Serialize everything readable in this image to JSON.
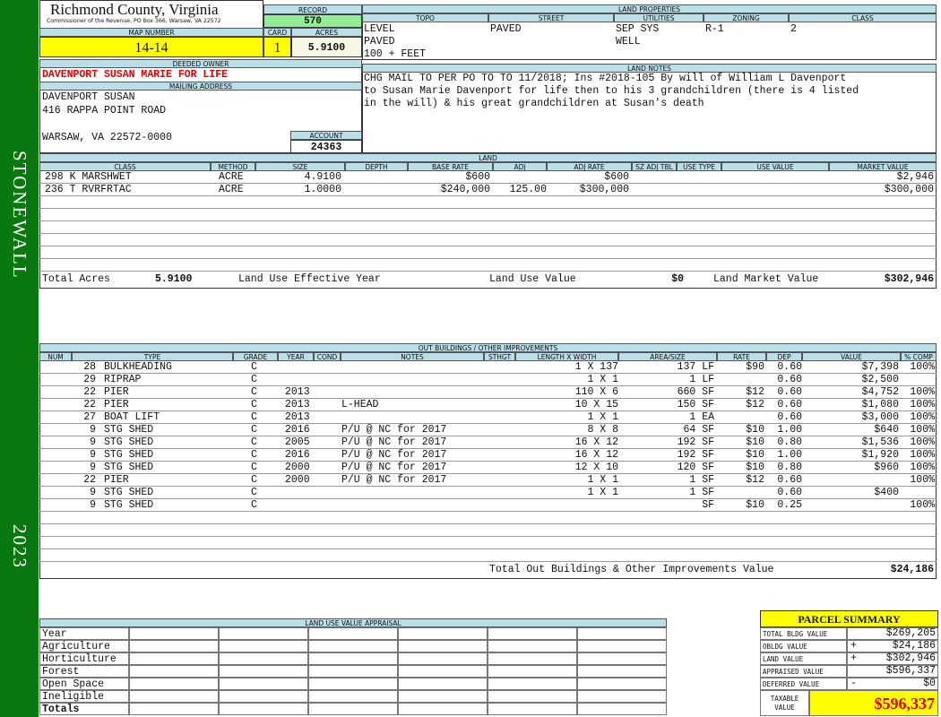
{
  "sidebar": {
    "district": "STONEWALL",
    "year": "2023"
  },
  "header": {
    "title": "Richmond County, Virginia",
    "subtitle": "Commissioner of the Revenue, PO Box 366, Warsaw, VA 22572"
  },
  "record": {
    "label": "RECORD",
    "value": "570"
  },
  "map_number": {
    "label": "MAP NUMBER",
    "value": "14-14"
  },
  "card": {
    "label": "CARD",
    "value": "1"
  },
  "acres": {
    "label": "ACRES",
    "value": "5.9100"
  },
  "land_properties": {
    "title": "LAND PROPERTIES",
    "columns": [
      {
        "label": "TOPO",
        "values": [
          "LEVEL",
          "PAVED",
          "100 + FEET"
        ]
      },
      {
        "label": "STREET",
        "values": [
          "PAVED"
        ]
      },
      {
        "label": "UTILITIES",
        "values": [
          "SEP SYS",
          "WELL"
        ]
      },
      {
        "label": "ZONING",
        "values": [
          "R-1"
        ]
      },
      {
        "label": "CLASS",
        "values": [
          "2"
        ]
      }
    ]
  },
  "deeded_owner": {
    "label": "DEEDED OWNER",
    "value": "DAVENPORT SUSAN MARIE FOR LIFE"
  },
  "mailing_address": {
    "label": "MAILING ADDRESS",
    "lines": [
      "DAVENPORT SUSAN",
      "416 RAPPA POINT ROAD",
      "WARSAW, VA 22572-0000"
    ]
  },
  "account": {
    "label": "ACCOUNT",
    "value": "24363"
  },
  "land_notes": {
    "label": "LAND NOTES",
    "lines": [
      "CHG MAIL TO PER PO TO TO 11/2018; Ins #2018-105 By will of William L Davenport",
      "to Susan Marie Davenport for life then to his 3 grandchildren (there is 4 listed",
      "in the will) & his great grandchildren at Susan's death"
    ]
  },
  "land": {
    "title": "LAND",
    "columns": {
      "class": "CLASS",
      "method": "METHOD",
      "size": "SIZE",
      "depth": "DEPTH",
      "base_rate": "BASE RATE",
      "adj": "ADJ",
      "adj_rate": "ADJ RATE",
      "sz_adj_tbl": "SZ ADJ TBL",
      "use_type": "USE TYPE",
      "use_value": "USE VALUE",
      "market_value": "MARKET VALUE"
    },
    "rows": [
      {
        "class": "298 K MARSHWET",
        "method": "ACRE",
        "size": "4.9100",
        "base_rate": "$600",
        "adj_rate": "$600",
        "market_value": "$2,946"
      },
      {
        "class": "236 T RVRFRTAC",
        "method": "ACRE",
        "size": "1.0000",
        "base_rate": "$240,000",
        "adj": "125.00",
        "adj_rate": "$300,000",
        "market_value": "$300,000"
      }
    ],
    "totals": {
      "total_acres_label": "Total Acres",
      "total_acres": "5.9100",
      "effective_year_label": "Land Use Effective Year",
      "use_value_label": "Land Use Value",
      "use_value": "$0",
      "market_value_label": "Land Market Value",
      "market_value": "$302,946"
    }
  },
  "outbuildings": {
    "title": "OUT BUILDINGS / OTHER IMPROVEMENTS",
    "columns": {
      "num": "NUM",
      "type": "TYPE",
      "grade": "GRADE",
      "year": "YEAR",
      "cond": "COND",
      "notes": "NOTES",
      "sthgt": "STHGT",
      "length_width": "LENGTH X WIDTH",
      "area": "AREA/SIZE",
      "rate": "RATE",
      "dep": "DEP",
      "value": "VALUE",
      "pct_comp": "% COMP"
    },
    "rows": [
      {
        "num": "28",
        "type": "BULKHEADING",
        "grade": "C",
        "length_width": "1 X 137",
        "area": "137 LF",
        "rate": "$90",
        "dep": "0.60",
        "value": "$7,398",
        "pct_comp": "100%"
      },
      {
        "num": "29",
        "type": "RIPRAP",
        "grade": "C",
        "length_width": "1 X 1",
        "area": "1 LF",
        "dep": "0.60",
        "value": "$2,500"
      },
      {
        "num": "22",
        "type": "PIER",
        "grade": "C",
        "year": "2013",
        "length_width": "110 X 6",
        "area": "660 SF",
        "rate": "$12",
        "dep": "0.60",
        "value": "$4,752",
        "pct_comp": "100%"
      },
      {
        "num": "22",
        "type": "PIER",
        "grade": "C",
        "year": "2013",
        "notes": "L-HEAD",
        "length_width": "10 X 15",
        "area": "150 SF",
        "rate": "$12",
        "dep": "0.60",
        "value": "$1,080",
        "pct_comp": "100%"
      },
      {
        "num": "27",
        "type": "BOAT LIFT",
        "grade": "C",
        "year": "2013",
        "length_width": "1 X 1",
        "area": "1 EA",
        "dep": "0.60",
        "value": "$3,000",
        "pct_comp": "100%"
      },
      {
        "num": "9",
        "type": "STG SHED",
        "grade": "C",
        "year": "2016",
        "notes": "P/U @ NC for 2017",
        "length_width": "8 X 8",
        "area": "64 SF",
        "rate": "$10",
        "dep": "1.00",
        "value": "$640",
        "pct_comp": "100%"
      },
      {
        "num": "9",
        "type": "STG SHED",
        "grade": "C",
        "year": "2005",
        "notes": "P/U @ NC for 2017",
        "length_width": "16 X 12",
        "area": "192 SF",
        "rate": "$10",
        "dep": "0.80",
        "value": "$1,536",
        "pct_comp": "100%"
      },
      {
        "num": "9",
        "type": "STG SHED",
        "grade": "C",
        "year": "2016",
        "notes": "P/U @ NC for 2017",
        "length_width": "16 X 12",
        "area": "192 SF",
        "rate": "$10",
        "dep": "1.00",
        "value": "$1,920",
        "pct_comp": "100%"
      },
      {
        "num": "9",
        "type": "STG SHED",
        "grade": "C",
        "year": "2000",
        "notes": "P/U @ NC for 2017",
        "length_width": "12 X 10",
        "area": "120 SF",
        "rate": "$10",
        "dep": "0.80",
        "value": "$960",
        "pct_comp": "100%"
      },
      {
        "num": "22",
        "type": "PIER",
        "grade": "C",
        "year": "2000",
        "notes": "P/U @ NC for 2017",
        "length_width": "1 X 1",
        "area": "1 SF",
        "rate": "$12",
        "dep": "0.60",
        "pct_comp": "100%"
      },
      {
        "num": "9",
        "type": "STG SHED",
        "grade": "C",
        "length_width": "1 X 1",
        "area": "1 SF",
        "dep": "0.60",
        "value": "$400"
      },
      {
        "num": "9",
        "type": "STG SHED",
        "grade": "C",
        "area": "SF",
        "rate": "$10",
        "dep": "0.25",
        "pct_comp": "100%"
      }
    ],
    "total": {
      "label": "Total Out Buildings & Other Improvements Value",
      "value": "$24,186"
    }
  },
  "land_use_appraisal": {
    "title": "LAND USE VALUE APPRAISAL",
    "rows": [
      "Year",
      "Agriculture",
      "Horticulture",
      "Forest",
      "Open Space",
      "Ineligible",
      "Totals"
    ]
  },
  "parcel_summary": {
    "title": "PARCEL SUMMARY",
    "rows": [
      {
        "label": "TOTAL BLDG VALUE",
        "value": "$269,205"
      },
      {
        "label": "OBLDG VALUE",
        "sign": "+",
        "value": "$24,186"
      },
      {
        "label": "LAND VALUE",
        "sign": "+",
        "value": "$302,946"
      },
      {
        "label": "APPRAISED VALUE",
        "value": "$596,337"
      },
      {
        "label": "DEFERRED VALUE",
        "sign": "-",
        "value": "$0"
      }
    ],
    "taxable": {
      "label": "TAXABLE VALUE",
      "value": "$596,337"
    }
  }
}
